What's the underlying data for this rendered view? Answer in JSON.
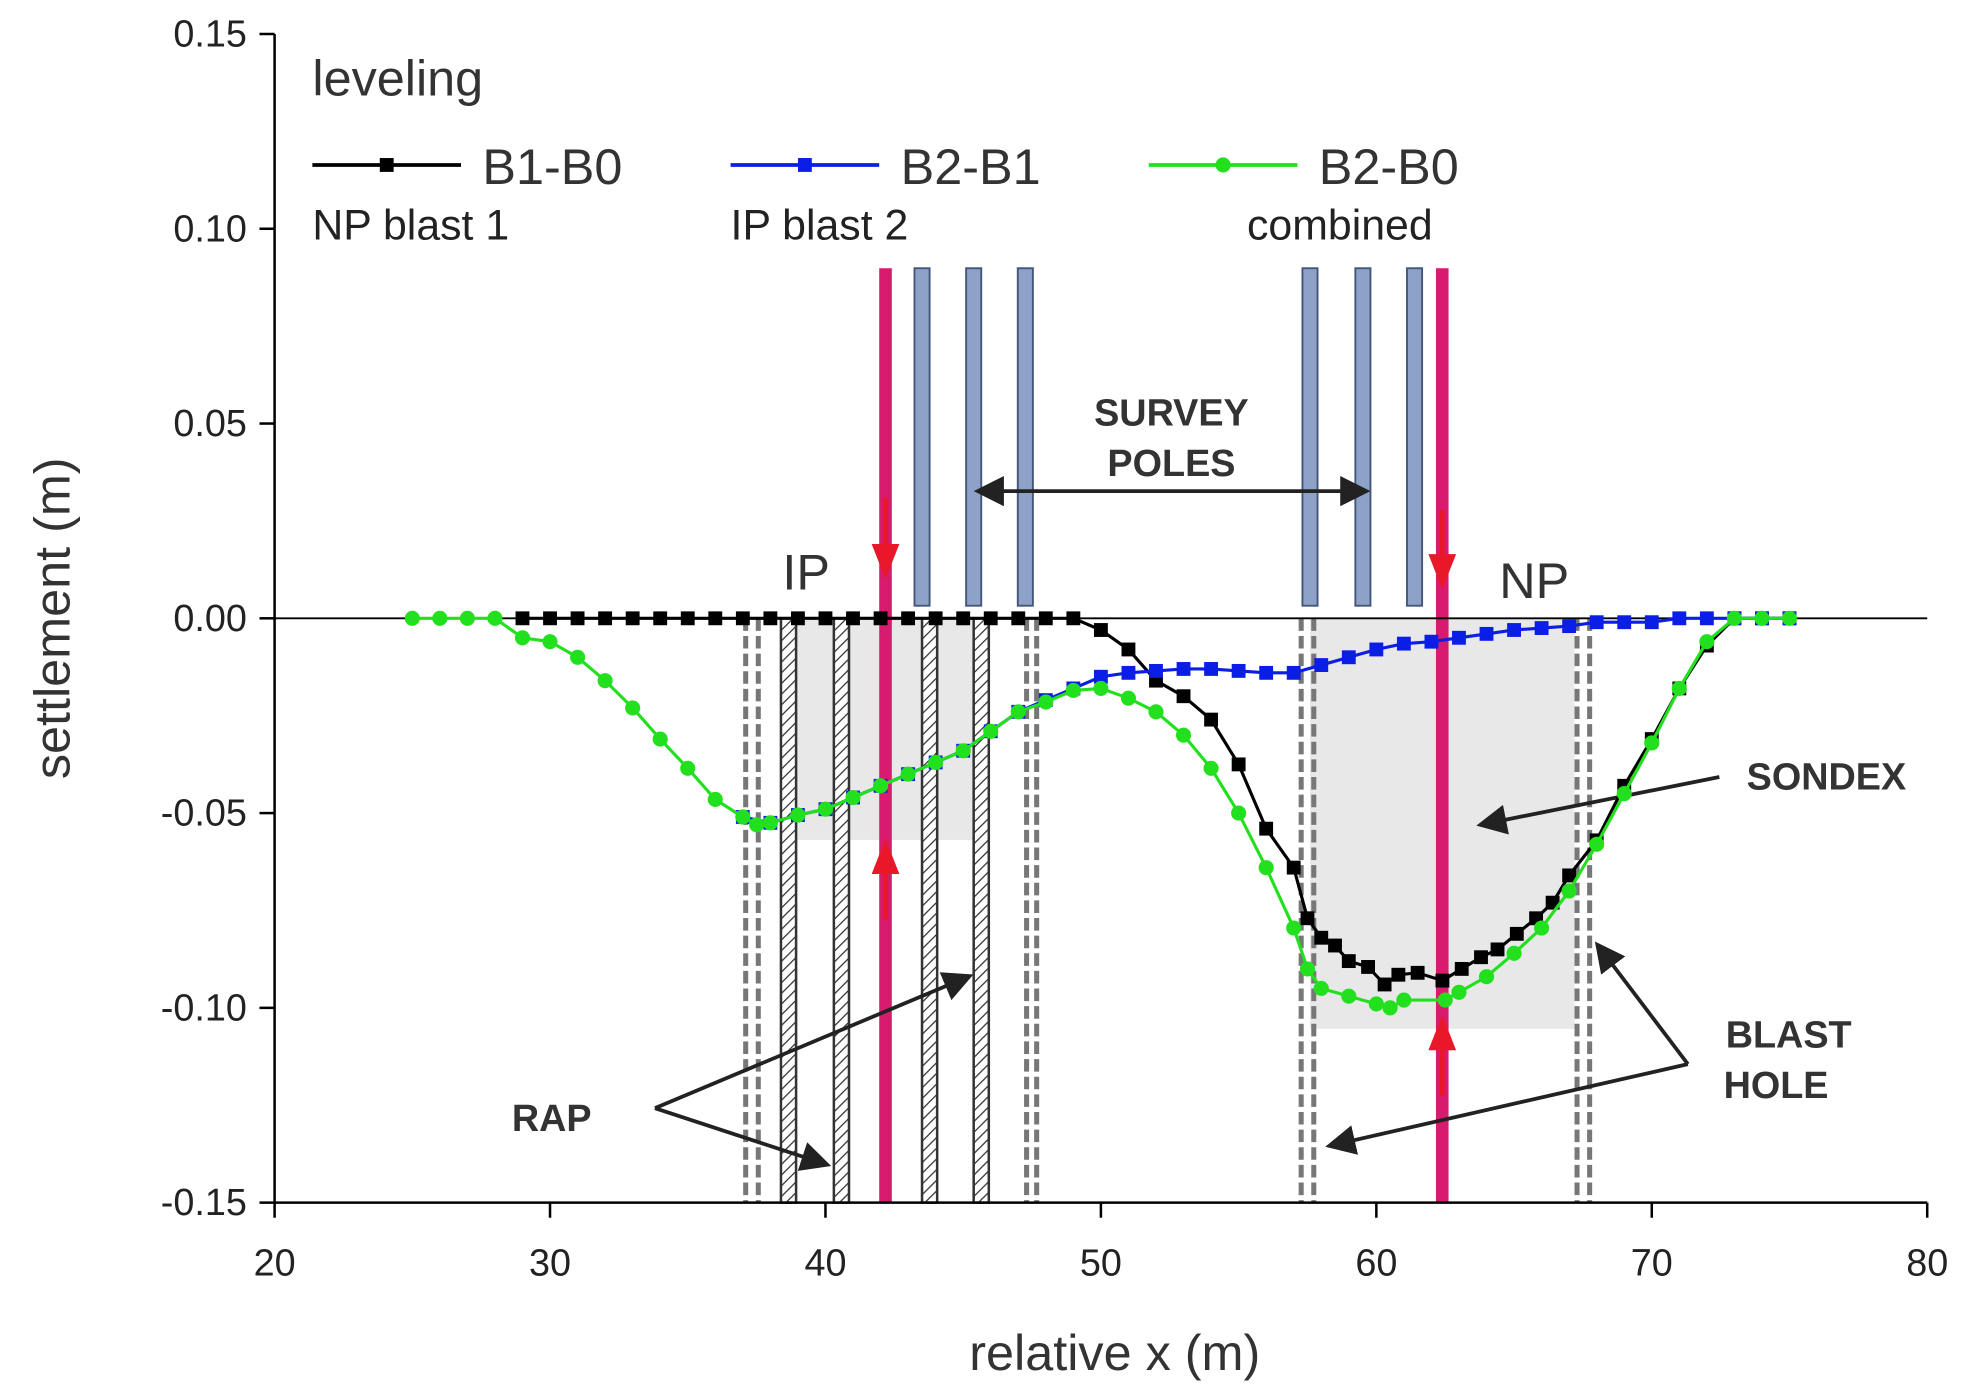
{
  "chart_data": {
    "type": "line",
    "xlabel": "relative x (m)",
    "ylabel": "settlement (m)",
    "xlim": [
      20,
      80
    ],
    "xticks": [
      20,
      30,
      40,
      50,
      60,
      70,
      80
    ],
    "ylim": [
      -0.15,
      0.15
    ],
    "yticks": [
      -0.15,
      {
        "value": -0.1,
        "label": "-0.10"
      },
      -0.05,
      {
        "value": 0,
        "label": "0.00"
      },
      0.05,
      {
        "value": 0.1,
        "label": "0.10"
      },
      0.15
    ],
    "legend_notes": [
      "NP blast 1",
      "IP blast 2",
      "combined"
    ],
    "annotations": [
      "leveling",
      "SURVEY",
      "POLES",
      "IP",
      "NP",
      "SONDEX",
      "RAP",
      "BLAST",
      "HOLE"
    ],
    "series": [
      {
        "name": "B1-B0",
        "color": "#000000",
        "marker": "square",
        "x": [
          29,
          30,
          31,
          32,
          33,
          34,
          35,
          36,
          37,
          38,
          39,
          40,
          41,
          42,
          43,
          44,
          45,
          46,
          47,
          48,
          49,
          50,
          51,
          52,
          53,
          54,
          55,
          56,
          57,
          57.5,
          58,
          58.5,
          59,
          59.7,
          60.3,
          60.8,
          61.5,
          62.4,
          63.1,
          63.8,
          64.4,
          65.1,
          65.8,
          66.4,
          67,
          68,
          69,
          70,
          71,
          72,
          73,
          74,
          75
        ],
        "values": [
          0,
          0,
          0,
          0,
          0,
          0,
          0,
          0,
          0,
          0,
          0,
          0,
          0,
          0,
          0,
          0,
          0,
          0,
          0,
          0,
          0,
          -0.003,
          -0.008,
          -0.016,
          -0.02,
          -0.026,
          -0.0375,
          -0.054,
          -0.064,
          -0.077,
          -0.082,
          -0.084,
          -0.088,
          -0.0895,
          -0.094,
          -0.0915,
          -0.091,
          -0.093,
          -0.09,
          -0.087,
          -0.085,
          -0.081,
          -0.077,
          -0.073,
          -0.066,
          -0.057,
          -0.043,
          -0.031,
          -0.018,
          -0.007,
          0,
          0,
          0
        ]
      },
      {
        "name": "B2-B1",
        "color": "#0a1ee6",
        "marker": "square",
        "x": [
          37,
          38,
          39,
          40,
          41,
          42,
          43,
          44,
          45,
          46,
          47,
          48,
          49,
          50,
          51,
          52,
          53,
          54,
          55,
          56,
          57,
          58,
          59,
          60,
          61,
          62,
          63,
          64,
          65,
          66,
          67,
          68,
          69,
          70,
          71,
          72,
          73,
          74,
          75
        ],
        "values": [
          -0.051,
          -0.0525,
          -0.0505,
          -0.049,
          -0.046,
          -0.043,
          -0.04,
          -0.037,
          -0.034,
          -0.029,
          -0.024,
          -0.021,
          -0.018,
          -0.015,
          -0.014,
          -0.0135,
          -0.013,
          -0.013,
          -0.0135,
          -0.014,
          -0.014,
          -0.012,
          -0.01,
          -0.008,
          -0.0065,
          -0.006,
          -0.005,
          -0.004,
          -0.003,
          -0.0025,
          -0.002,
          -0.001,
          -0.001,
          -0.001,
          0,
          0,
          0,
          0,
          0
        ]
      },
      {
        "name": "B2-B0",
        "color": "#22e01e",
        "marker": "circle",
        "x": [
          25,
          26,
          27,
          28,
          29,
          30,
          31,
          32,
          33,
          34,
          35,
          36,
          37,
          37.5,
          38,
          39,
          40,
          41,
          42,
          43,
          44,
          45,
          46,
          47,
          48,
          49,
          50,
          51,
          52,
          53,
          54,
          55,
          56,
          57,
          57.5,
          58,
          59,
          60,
          60.5,
          61,
          62.5,
          63,
          64,
          65,
          66,
          67,
          68,
          69,
          70,
          71,
          72,
          73,
          74,
          75
        ],
        "values": [
          0,
          0,
          0,
          0,
          -0.005,
          -0.006,
          -0.01,
          -0.016,
          -0.023,
          -0.031,
          -0.0385,
          -0.0465,
          -0.051,
          -0.053,
          -0.0525,
          -0.0505,
          -0.049,
          -0.046,
          -0.043,
          -0.04,
          -0.037,
          -0.034,
          -0.029,
          -0.024,
          -0.0215,
          -0.0185,
          -0.018,
          -0.0205,
          -0.024,
          -0.03,
          -0.0385,
          -0.05,
          -0.064,
          -0.0795,
          -0.09,
          -0.095,
          -0.097,
          -0.099,
          -0.1,
          -0.098,
          -0.098,
          -0.096,
          -0.092,
          -0.086,
          -0.0795,
          -0.07,
          -0.058,
          -0.045,
          -0.032,
          -0.018,
          -0.006,
          0,
          0,
          0
        ]
      }
    ]
  }
}
